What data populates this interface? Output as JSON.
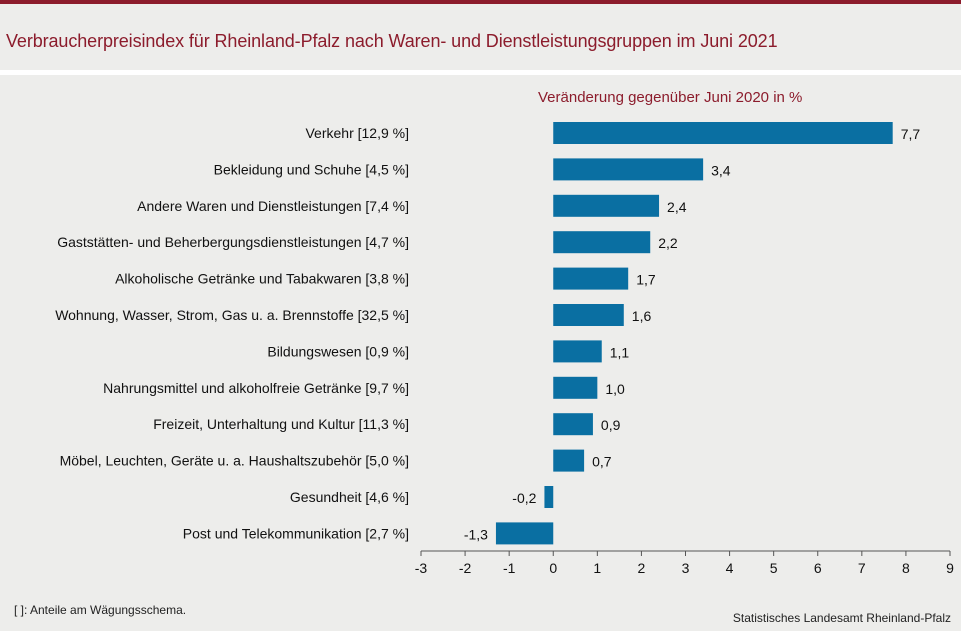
{
  "title": "Verbraucherpreisindex für Rheinland-Pfalz nach Waren- und Dienstleistungsgruppen im Juni 2021",
  "footnote": "[ ]: Anteile am Wägungsschema.",
  "source": "Statistisches Landesamt Rheinland-Pfalz",
  "colors": {
    "accent": "#8c1c2c",
    "bar": "#0a6fa2",
    "background": "#ededeb"
  },
  "chart_data": {
    "type": "bar",
    "orientation": "horizontal",
    "subtitle": "Veränderung gegenüber Juni 2020 in %",
    "categories": [
      "Verkehr [12,9 %]",
      "Bekleidung und Schuhe [4,5 %]",
      "Andere Waren und Dienstleistungen [7,4 %]",
      "Gaststätten- und Beherbergungsdienstleistungen [4,7 %]",
      "Alkoholische Getränke und Tabakwaren [3,8 %]",
      "Wohnung, Wasser, Strom, Gas u. a. Brennstoffe [32,5 %]",
      "Bildungswesen [0,9 %]",
      "Nahrungsmittel und alkoholfreie Getränke [9,7 %]",
      "Freizeit, Unterhaltung und Kultur [11,3 %]",
      "Möbel, Leuchten, Geräte u. a. Haushaltszubehör [5,0 %]",
      "Gesundheit [4,6 %]",
      "Post und Telekommunikation [2,7 %]"
    ],
    "values": [
      7.7,
      3.4,
      2.4,
      2.2,
      1.7,
      1.6,
      1.1,
      1.0,
      0.9,
      0.7,
      -0.2,
      -1.3
    ],
    "value_labels": [
      "7,7",
      "3,4",
      "2,4",
      "2,2",
      "1,7",
      "1,6",
      "1,1",
      "1,0",
      "0,9",
      "0,7",
      "-0,2",
      "-1,3"
    ],
    "xlim": [
      -3,
      9
    ],
    "xticks": [
      -3,
      -2,
      -1,
      0,
      1,
      2,
      3,
      4,
      5,
      6,
      7,
      8,
      9
    ],
    "xlabel": "",
    "ylabel": "",
    "grid": false
  }
}
